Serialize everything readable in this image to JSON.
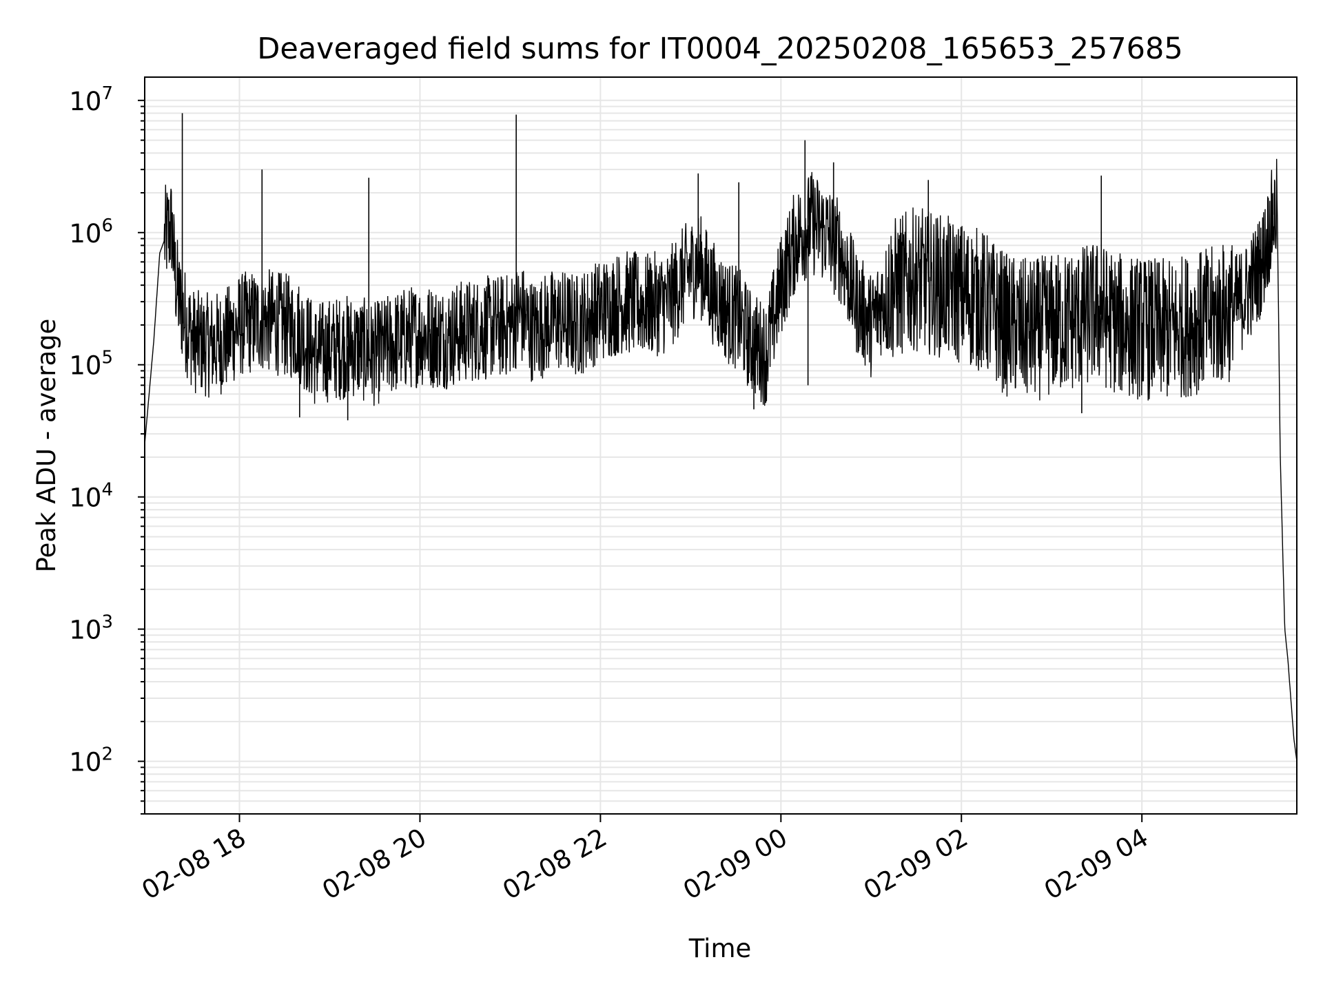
{
  "chart_data": {
    "type": "line",
    "title": "Deaveraged field sums for IT0004_20250208_165653_257685",
    "xlabel": "Time",
    "ylabel": "Peak ADU - average",
    "yscale": "log",
    "grid": true,
    "x_range": [
      "2025-02-08 16:57",
      "2025-02-09 05:43"
    ],
    "ylim": [
      40,
      15000000
    ],
    "x_ticks": [
      {
        "value": "2025-02-08 18:00",
        "label": "02-08 18"
      },
      {
        "value": "2025-02-08 20:00",
        "label": "02-08 20"
      },
      {
        "value": "2025-02-08 22:00",
        "label": "02-08 22"
      },
      {
        "value": "2025-02-09 00:00",
        "label": "02-09 00"
      },
      {
        "value": "2025-02-09 02:00",
        "label": "02-09 02"
      },
      {
        "value": "2025-02-09 04:00",
        "label": "02-09 04"
      }
    ],
    "y_ticks": [
      {
        "value": 100,
        "base": "10",
        "exp": "2"
      },
      {
        "value": 1000,
        "base": "10",
        "exp": "3"
      },
      {
        "value": 10000,
        "base": "10",
        "exp": "4"
      },
      {
        "value": 100000,
        "base": "10",
        "exp": "5"
      },
      {
        "value": 1000000,
        "base": "10",
        "exp": "6"
      },
      {
        "value": 10000000,
        "base": "10",
        "exp": "7"
      }
    ],
    "series": [
      {
        "color": "#000000",
        "x": [
          "2025-02-08 16:57",
          "2025-02-08 17:03",
          "2025-02-08 17:07",
          "2025-02-08 17:12",
          "2025-02-08 17:15",
          "2025-02-08 17:17",
          "2025-02-08 17:20",
          "2025-02-08 17:25",
          "2025-02-08 17:30",
          "2025-02-08 17:40",
          "2025-02-08 17:50",
          "2025-02-08 18:00",
          "2025-02-08 18:15",
          "2025-02-08 18:30",
          "2025-02-08 18:40",
          "2025-02-08 18:50",
          "2025-02-08 19:00",
          "2025-02-08 19:15",
          "2025-02-08 19:30",
          "2025-02-08 19:45",
          "2025-02-08 20:00",
          "2025-02-08 20:15",
          "2025-02-08 20:30",
          "2025-02-08 20:45",
          "2025-02-08 21:00",
          "2025-02-08 21:06",
          "2025-02-08 21:15",
          "2025-02-08 21:30",
          "2025-02-08 21:45",
          "2025-02-08 22:00",
          "2025-02-08 22:15",
          "2025-02-08 22:30",
          "2025-02-08 22:45",
          "2025-02-08 22:55",
          "2025-02-08 23:05",
          "2025-02-08 23:15",
          "2025-02-08 23:25",
          "2025-02-08 23:32",
          "2025-02-08 23:40",
          "2025-02-08 23:50",
          "2025-02-09 00:00",
          "2025-02-09 00:10",
          "2025-02-09 00:20",
          "2025-02-09 00:30",
          "2025-02-09 00:40",
          "2025-02-09 00:50",
          "2025-02-09 01:00",
          "2025-02-09 01:10",
          "2025-02-09 01:20",
          "2025-02-09 01:30",
          "2025-02-09 01:45",
          "2025-02-09 02:00",
          "2025-02-09 02:15",
          "2025-02-09 02:30",
          "2025-02-09 02:45",
          "2025-02-09 03:00",
          "2025-02-09 03:15",
          "2025-02-09 03:30",
          "2025-02-09 03:45",
          "2025-02-09 04:00",
          "2025-02-09 04:15",
          "2025-02-09 04:30",
          "2025-02-09 04:45",
          "2025-02-09 05:00",
          "2025-02-09 05:10",
          "2025-02-09 05:20",
          "2025-02-09 05:27",
          "2025-02-09 05:30",
          "2025-02-09 05:32",
          "2025-02-09 05:35",
          "2025-02-09 05:37",
          "2025-02-09 05:39",
          "2025-02-09 05:41",
          "2025-02-09 05:43"
        ],
        "y": [
          25000,
          150000,
          700000,
          1000000,
          1100000,
          500000,
          300000,
          200000,
          150000,
          140000,
          150000,
          200000,
          220000,
          200000,
          180000,
          120000,
          130000,
          140000,
          120000,
          150000,
          170000,
          160000,
          180000,
          190000,
          200000,
          250000,
          180000,
          220000,
          200000,
          260000,
          300000,
          280000,
          300000,
          450000,
          600000,
          350000,
          250000,
          220000,
          150000,
          120000,
          400000,
          900000,
          1200000,
          1000000,
          700000,
          300000,
          200000,
          350000,
          400000,
          450000,
          400000,
          350000,
          300000,
          200000,
          180000,
          200000,
          220000,
          250000,
          200000,
          190000,
          180000,
          200000,
          220000,
          260000,
          350000,
          600000,
          1300000,
          1500000,
          20000,
          1000,
          600,
          300,
          150,
          100
        ],
        "spikes": [
          {
            "x": "2025-02-08 17:22",
            "y": 8000000
          },
          {
            "x": "2025-02-08 21:04",
            "y": 7800000
          },
          {
            "x": "2025-02-08 18:15",
            "y": 3000000
          },
          {
            "x": "2025-02-08 19:26",
            "y": 2600000
          },
          {
            "x": "2025-02-08 23:05",
            "y": 2800000
          },
          {
            "x": "2025-02-08 23:32",
            "y": 2400000
          },
          {
            "x": "2025-02-09 00:16",
            "y": 5000000
          },
          {
            "x": "2025-02-09 00:35",
            "y": 3400000
          },
          {
            "x": "2025-02-09 01:38",
            "y": 2500000
          },
          {
            "x": "2025-02-09 03:33",
            "y": 2700000
          },
          {
            "x": "2025-02-09 05:28",
            "y": 2000000
          },
          {
            "x": "2025-02-08 18:40",
            "y": 40000
          },
          {
            "x": "2025-02-08 19:12",
            "y": 38000
          },
          {
            "x": "2025-02-08 23:42",
            "y": 46000
          },
          {
            "x": "2025-02-09 00:18",
            "y": 70000
          },
          {
            "x": "2025-02-09 03:20",
            "y": 43000
          }
        ]
      }
    ]
  }
}
